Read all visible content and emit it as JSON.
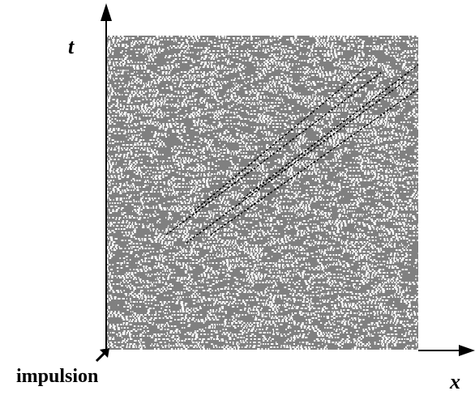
{
  "axes": {
    "vertical_label": "t",
    "horizontal_label": "x"
  },
  "annotation": "impulsion"
}
